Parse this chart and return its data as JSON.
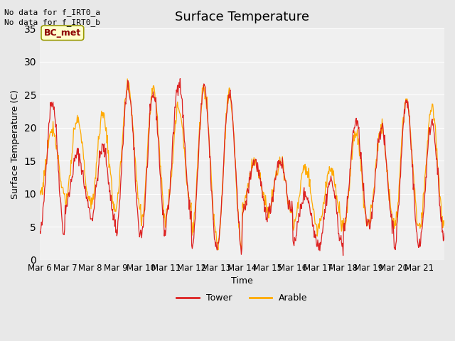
{
  "title": "Surface Temperature",
  "xlabel": "Time",
  "ylabel": "Surface Temperature (C)",
  "ylim": [
    0,
    35
  ],
  "yticks": [
    0,
    5,
    10,
    15,
    20,
    25,
    30,
    35
  ],
  "bg_color": "#e8e8e8",
  "plot_bg_color": "#f0f0f0",
  "tower_color": "#dd2222",
  "arable_color": "#ffaa00",
  "no_data_text_1": "No data for f_IRT0_a",
  "no_data_text_2": "No data for f_IRT0_b",
  "bc_met_label": "BC_met",
  "legend_tower": "Tower",
  "legend_arable": "Arable",
  "x_tick_labels": [
    "Mar 6",
    "Mar 7",
    "Mar 8",
    "Mar 9",
    "Mar 10",
    "Mar 11",
    "Mar 12",
    "Mar 13",
    "Mar 14",
    "Mar 15",
    "Mar 16",
    "Mar 17",
    "Mar 18",
    "Mar 19",
    "Mar 20",
    "Mar 21",
    ""
  ],
  "n_days": 16,
  "points_per_day": 48,
  "tower_day_amplitudes": [
    20,
    8,
    11,
    22,
    21,
    20,
    24,
    23,
    8,
    8,
    7,
    10,
    16,
    15,
    22,
    18
  ],
  "tower_day_mins": [
    4,
    8,
    6,
    4,
    4,
    7,
    2,
    2,
    7,
    7,
    3,
    2,
    5,
    5,
    2,
    3
  ],
  "arable_day_amplitudes": [
    10,
    12,
    14,
    18,
    20,
    15,
    22,
    23,
    7,
    8,
    9,
    9,
    14,
    14,
    19,
    18
  ],
  "arable_day_mins": [
    10,
    9,
    8,
    8,
    6,
    8,
    4,
    2,
    8,
    7,
    5,
    5,
    5,
    6,
    5,
    5
  ]
}
